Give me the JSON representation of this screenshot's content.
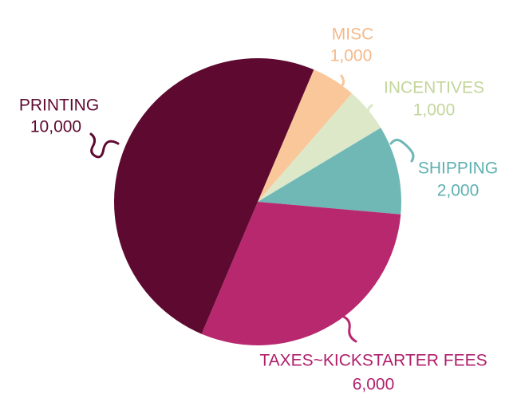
{
  "chart_data": {
    "type": "pie",
    "categories": [
      "MISC",
      "INCENTIVES",
      "SHIPPING",
      "TAXES~KICKSTARTER FEES",
      "PRINTING"
    ],
    "values": [
      1000,
      1000,
      2000,
      6000,
      10000
    ],
    "value_labels": [
      "1,000",
      "1,000",
      "2,000",
      "6,000",
      "10,000"
    ],
    "colors": [
      "#f9c79a",
      "#dde8c9",
      "#6fb8b6",
      "#b8286e",
      "#5e0a30"
    ]
  }
}
